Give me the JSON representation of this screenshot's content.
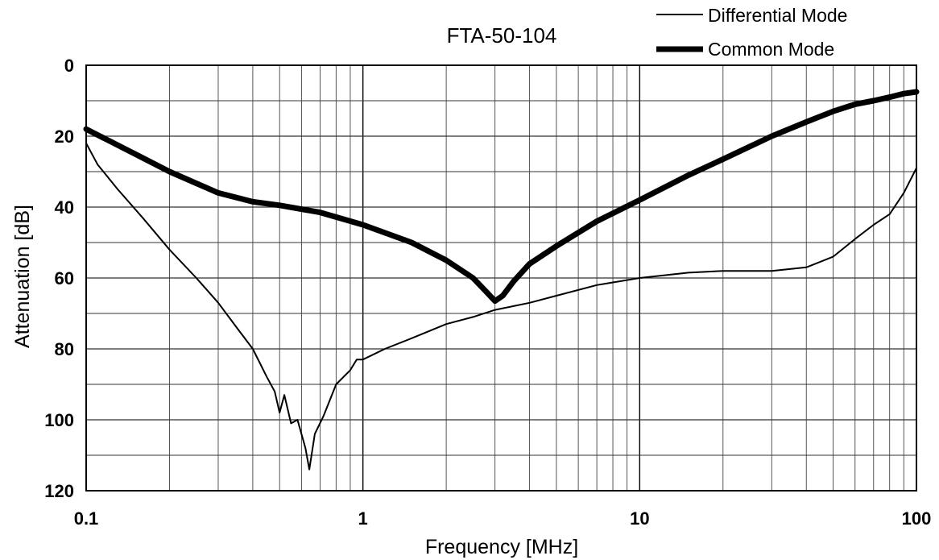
{
  "chart_data": {
    "type": "line",
    "title": "FTA-50-104",
    "xlabel": "Frequency [MHz]",
    "ylabel": "Attenuation [dB]",
    "x_scale": "log",
    "xlim": [
      0.1,
      100
    ],
    "ylim": [
      0,
      120
    ],
    "y_inverted": true,
    "x_ticks": [
      "0.1",
      "1",
      "10",
      "100"
    ],
    "y_ticks": [
      "0",
      "20",
      "40",
      "60",
      "80",
      "100",
      "120"
    ],
    "grid": true,
    "legend_position": "top-right",
    "series": [
      {
        "name": "Differential Mode",
        "line_weight": "thin",
        "color": "#000000",
        "points": [
          [
            0.1,
            22
          ],
          [
            0.11,
            28
          ],
          [
            0.13,
            35
          ],
          [
            0.16,
            43
          ],
          [
            0.2,
            52
          ],
          [
            0.25,
            60
          ],
          [
            0.3,
            67
          ],
          [
            0.35,
            74
          ],
          [
            0.4,
            80
          ],
          [
            0.45,
            88
          ],
          [
            0.48,
            92
          ],
          [
            0.5,
            98
          ],
          [
            0.52,
            93
          ],
          [
            0.55,
            101
          ],
          [
            0.58,
            100
          ],
          [
            0.62,
            108
          ],
          [
            0.64,
            114
          ],
          [
            0.67,
            104
          ],
          [
            0.72,
            99
          ],
          [
            0.8,
            90
          ],
          [
            0.9,
            86
          ],
          [
            0.95,
            83
          ],
          [
            1.0,
            83
          ],
          [
            1.2,
            80
          ],
          [
            1.5,
            77
          ],
          [
            2.0,
            73
          ],
          [
            2.5,
            71
          ],
          [
            3.0,
            69
          ],
          [
            4.0,
            67
          ],
          [
            5.0,
            65
          ],
          [
            7.0,
            62
          ],
          [
            10.0,
            60
          ],
          [
            15.0,
            58.5
          ],
          [
            20.0,
            58
          ],
          [
            30.0,
            58
          ],
          [
            40.0,
            57
          ],
          [
            50.0,
            54
          ],
          [
            60.0,
            49
          ],
          [
            70.0,
            45
          ],
          [
            80.0,
            42
          ],
          [
            90.0,
            36
          ],
          [
            100.0,
            29
          ]
        ]
      },
      {
        "name": "Common Mode",
        "line_weight": "thick",
        "color": "#000000",
        "points": [
          [
            0.1,
            18
          ],
          [
            0.15,
            25
          ],
          [
            0.2,
            30
          ],
          [
            0.3,
            36
          ],
          [
            0.4,
            38.5
          ],
          [
            0.5,
            39.5
          ],
          [
            0.7,
            41.5
          ],
          [
            1.0,
            45
          ],
          [
            1.5,
            50
          ],
          [
            2.0,
            55
          ],
          [
            2.5,
            60
          ],
          [
            2.8,
            64
          ],
          [
            3.0,
            66.5
          ],
          [
            3.2,
            65
          ],
          [
            3.5,
            61
          ],
          [
            4.0,
            56
          ],
          [
            5.0,
            51
          ],
          [
            7.0,
            44
          ],
          [
            10.0,
            38
          ],
          [
            15.0,
            31
          ],
          [
            20.0,
            26.5
          ],
          [
            30.0,
            20
          ],
          [
            40.0,
            16
          ],
          [
            50.0,
            13
          ],
          [
            60.0,
            11
          ],
          [
            70.0,
            10
          ],
          [
            80.0,
            9
          ],
          [
            90.0,
            8
          ],
          [
            100.0,
            7.5
          ]
        ]
      }
    ]
  }
}
